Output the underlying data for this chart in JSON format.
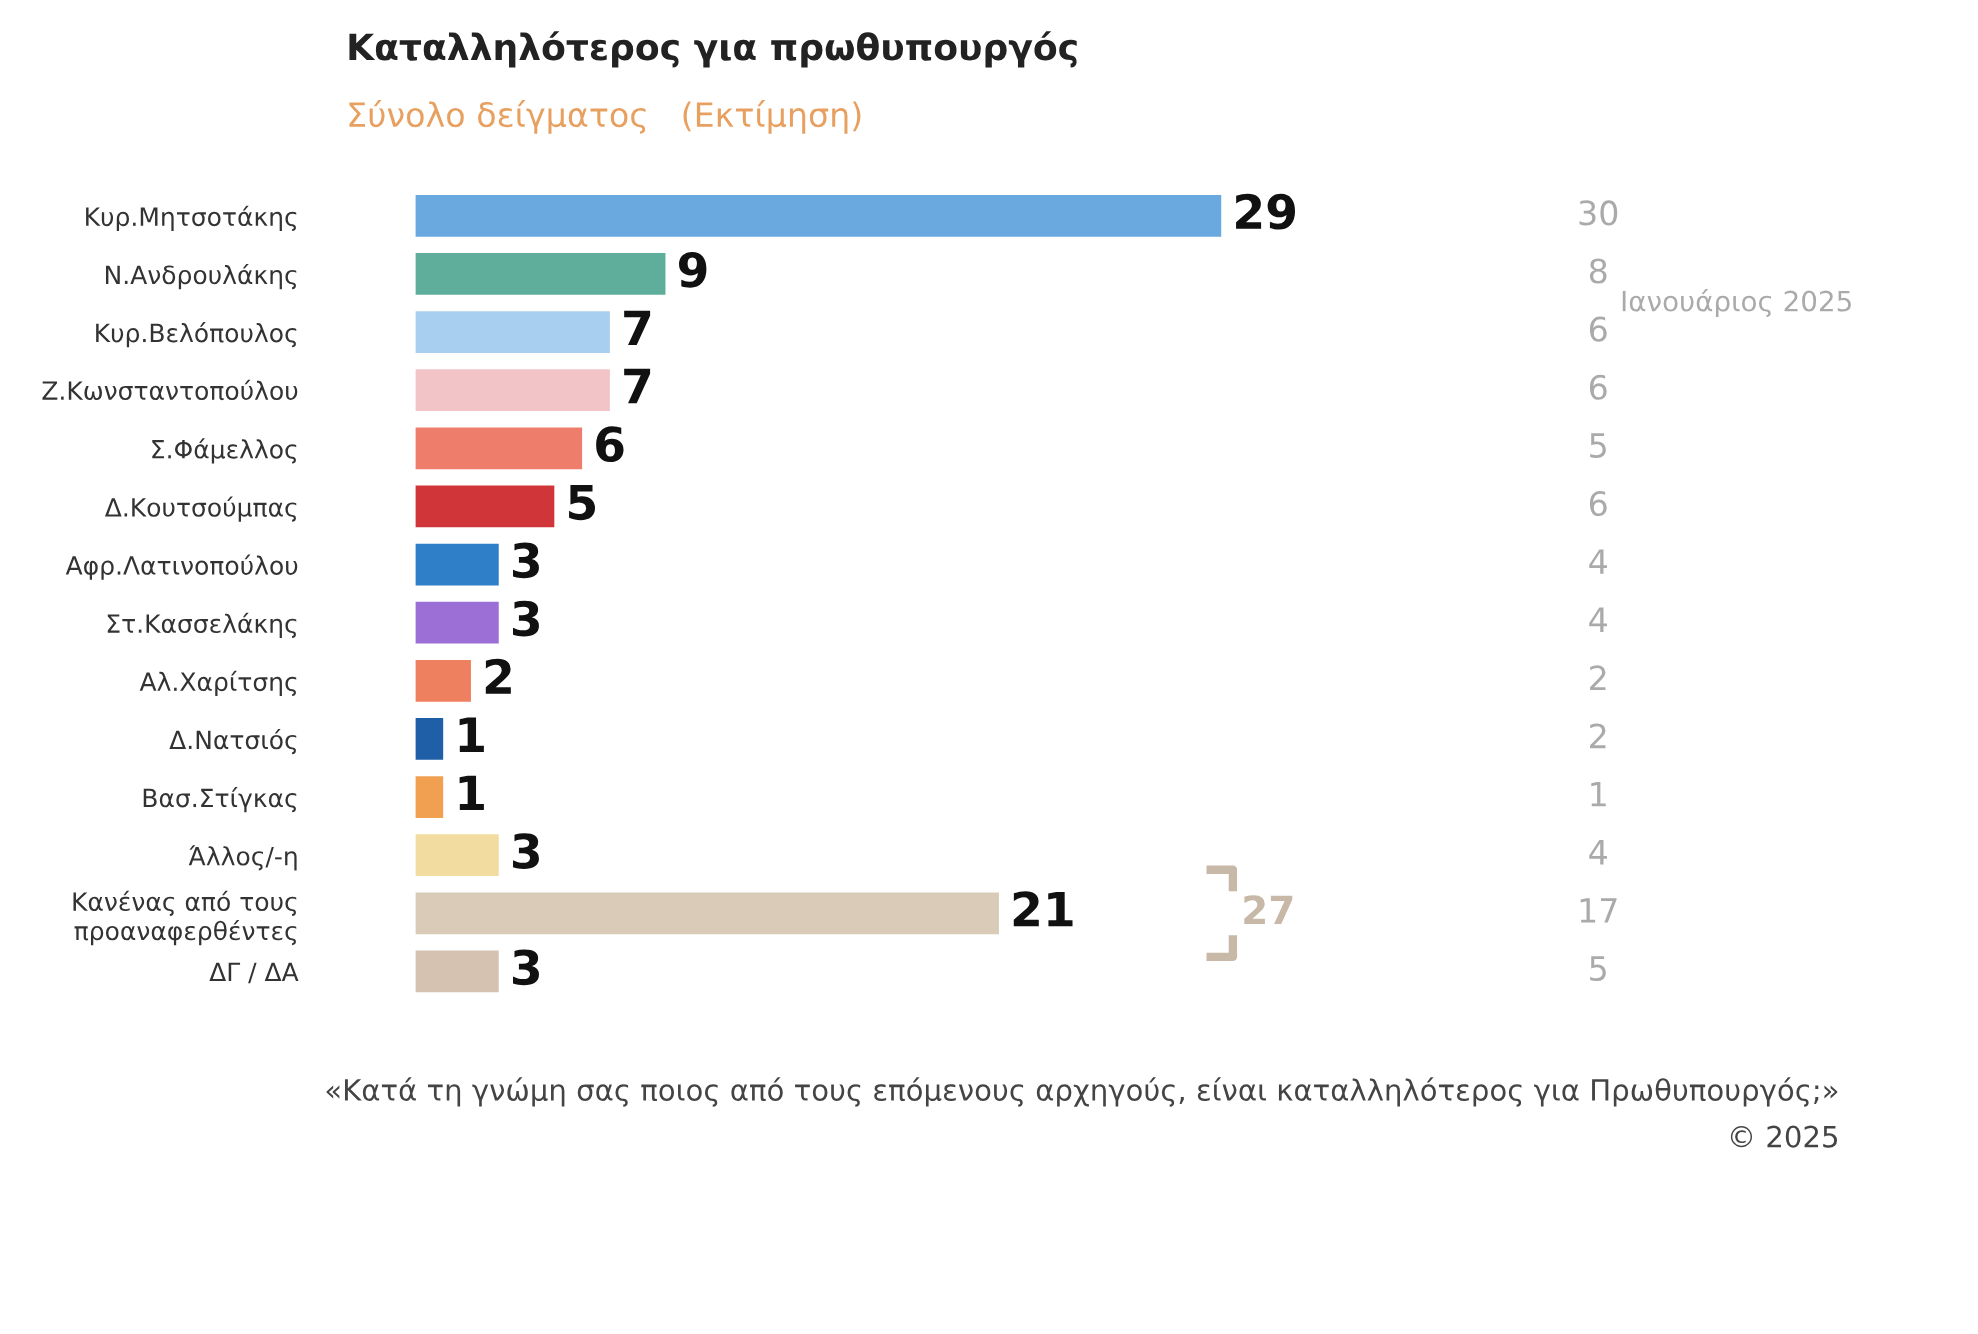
{
  "chart_data": [
    {
      "type": "bar",
      "orientation": "horizontal",
      "title": "Καταλληλότερος για πρωθυπουργός",
      "subtitle": "Σύνολο δείγματος   (Εκτίμηση)",
      "categories": [
        "Κυρ.Μητσοτάκης",
        "Ν.Ανδρουλάκης",
        "Κυρ.Βελόπουλος",
        "Ζ.Κωνσταντοπούλου",
        "Σ.Φάμελλος",
        "Δ.Κουτσούμπας",
        "Αφρ.Λατινοπούλου",
        "Στ.Κασσελάκης",
        "Αλ.Χαρίτσης",
        "Δ.Νατσιός",
        "Βασ.Στίγκας",
        "Άλλος/-η",
        "Κανένας από τους προαναφερθέντες",
        "ΔΓ / ΔΑ"
      ],
      "values": [
        29,
        9,
        7,
        7,
        6,
        5,
        3,
        3,
        2,
        1,
        1,
        3,
        21,
        3
      ],
      "colors": [
        "#6aa8e0",
        "#5fae9c",
        "#a9cff0",
        "#f2c4c8",
        "#ee7d6b",
        "#d0353a",
        "#2f7fc8",
        "#9b6fd6",
        "#ee8060",
        "#1f5fa8",
        "#f0a050",
        "#f3dca0",
        "#d9cbb8",
        "#d6c2b0"
      ],
      "data_labels": true,
      "annotations": [
        "27",
        "«Κατά τη γνώμη σας ποιος από τους επόμενους αρχηγούς, είναι καταλληλότερος για Πρωθυπουργός;»",
        "© 2025"
      ]
    },
    {
      "type": "other",
      "title": "Ιανουάριος 2025",
      "annotations": [
        "30",
        "8",
        "6",
        "6",
        "5",
        "6",
        "4",
        "4",
        "2",
        "2",
        "1",
        "4",
        "17",
        "5"
      ]
    }
  ]
}
